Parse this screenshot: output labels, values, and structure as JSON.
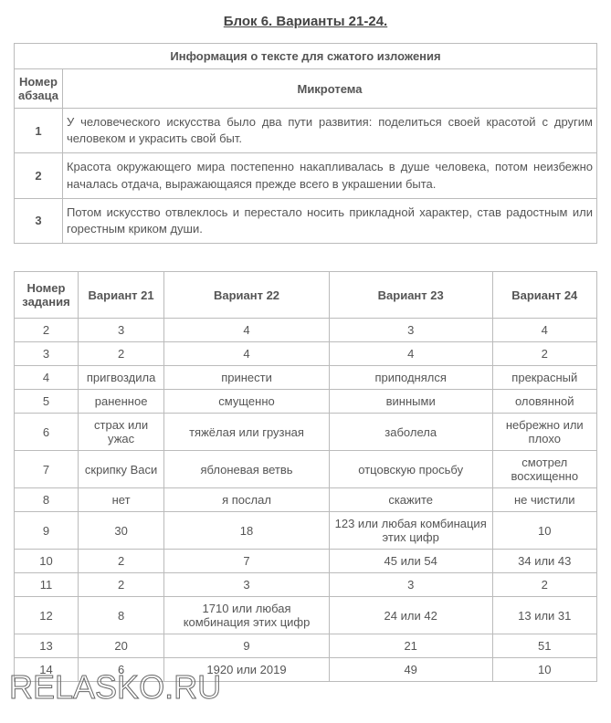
{
  "title": "Блок 6. Варианты 21-24.",
  "table1": {
    "caption": "Информация о тексте для сжатого изложения",
    "col1_header": "Номер абзаца",
    "col2_header": "Микротема",
    "rows": [
      {
        "num": "1",
        "text": "У человеческого искусства было два пути развития: поделиться своей красотой с другим человеком и украсить свой быт."
      },
      {
        "num": "2",
        "text": "Красота окружающего мира постепенно накапливалась в душе человека, потом неизбежно началась отдача, выражающаяся прежде всего в украшении быта."
      },
      {
        "num": "3",
        "text": "Потом искусство отвлеклось и перестало носить прикладной характер, став радостным или горестным криком души."
      }
    ]
  },
  "table2": {
    "headers": [
      "Номер задания",
      "Вариант 21",
      "Вариант 22",
      "Вариант 23",
      "Вариант 24"
    ],
    "rows": [
      [
        "2",
        "3",
        "4",
        "3",
        "4"
      ],
      [
        "3",
        "2",
        "4",
        "4",
        "2"
      ],
      [
        "4",
        "пригвоздила",
        "принести",
        "приподнялся",
        "прекрасный"
      ],
      [
        "5",
        "раненное",
        "смущенно",
        "винными",
        "оловянной"
      ],
      [
        "6",
        "страх или ужас",
        "тяжёлая или грузная",
        "заболела",
        "небрежно или плохо"
      ],
      [
        "7",
        "скрипку Васи",
        "яблоневая ветвь",
        "отцовскую просьбу",
        "смотрел восхищенно"
      ],
      [
        "8",
        "нет",
        "я послал",
        "скажите",
        "не чистили"
      ],
      [
        "9",
        "30",
        "18",
        "123 или любая комбинация этих цифр",
        "10"
      ],
      [
        "10",
        "2",
        "7",
        "45 или 54",
        "34 или 43"
      ],
      [
        "11",
        "2",
        "3",
        "3",
        "2"
      ],
      [
        "12",
        "8",
        "1710  или любая комбинация этих цифр",
        "24 или 42",
        "13 или 31"
      ],
      [
        "13",
        "20",
        "9",
        "21",
        "51"
      ],
      [
        "14",
        "6",
        "1920 или 2019",
        "49",
        "10"
      ]
    ]
  },
  "watermark": "RELASKO.RU"
}
